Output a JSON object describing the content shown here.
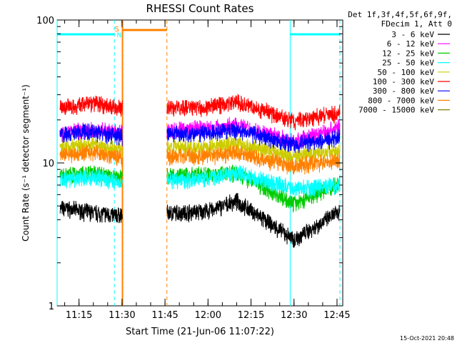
{
  "chart_data": {
    "type": "line",
    "title": "RHESSI Count Rates",
    "xlabel": "Start Time (21-Jun-06 11:07:22)",
    "ylabel": "Count Rate (s⁻¹ detector segment⁻¹)",
    "yscale": "log",
    "ylim": [
      1,
      100
    ],
    "xlim": [
      "11:07:22",
      "12:47:00"
    ],
    "x_tick_labels": [
      "11:15",
      "11:30",
      "11:45",
      "12:00",
      "12:15",
      "12:30",
      "12:45"
    ],
    "y_tick_labels": [
      "1",
      "10",
      "100"
    ],
    "legend_header": [
      "Det 1f,3f,4f,5f,6f,9f,",
      "FDecim 1, Att 0"
    ],
    "legend_position": "right",
    "footer_timestamp": "15-Oct-2021 20:48",
    "flag_labels": {
      "saa": "S",
      "night": "N"
    },
    "data_gaps": [
      {
        "start": "11:30:10",
        "end": "11:45:40"
      }
    ],
    "series": [
      {
        "name": "3 - 6 keV",
        "color": "#000000",
        "values_at": [
          "11:10",
          "11:20",
          "11:28",
          "12:00",
          "12:10",
          "12:30",
          "12:46"
        ],
        "values": [
          4.8,
          4.5,
          4.3,
          4.6,
          5.4,
          2.9,
          4.6
        ]
      },
      {
        "name": "6 - 12 keV",
        "color": "#ff00ff",
        "values_at": [
          "11:10",
          "11:20",
          "11:28",
          "12:00",
          "12:10",
          "12:30",
          "12:46"
        ],
        "values": [
          16.5,
          17.0,
          16.5,
          17.5,
          18.5,
          14.0,
          18.0
        ]
      },
      {
        "name": "12 - 25 keV",
        "color": "#00cc00",
        "values_at": [
          "11:10",
          "11:20",
          "11:28",
          "12:00",
          "12:10",
          "12:30",
          "12:46"
        ],
        "values": [
          8.2,
          8.5,
          8.0,
          8.3,
          8.6,
          5.2,
          7.2
        ]
      },
      {
        "name": "25 - 50 keV",
        "color": "#00ffff",
        "values_at": [
          "11:10",
          "11:20",
          "11:28",
          "12:00",
          "12:10",
          "12:30",
          "12:46"
        ],
        "values": [
          7.6,
          8.0,
          7.4,
          7.8,
          8.5,
          6.6,
          7.0
        ]
      },
      {
        "name": "50 - 100 keV",
        "color": "#cccc00",
        "values_at": [
          "11:10",
          "11:20",
          "11:28",
          "12:00",
          "12:10",
          "12:30",
          "12:46"
        ],
        "values": [
          13.0,
          13.5,
          12.5,
          13.0,
          13.8,
          11.0,
          12.5
        ]
      },
      {
        "name": "100 - 300 keV",
        "color": "#ff0000",
        "values_at": [
          "11:10",
          "11:20",
          "11:28",
          "12:00",
          "12:10",
          "12:30",
          "12:46"
        ],
        "values": [
          24.5,
          26.5,
          24.0,
          24.5,
          27.0,
          19.5,
          22.5
        ]
      },
      {
        "name": "300 - 800 keV",
        "color": "#0000ff",
        "values_at": [
          "11:10",
          "11:20",
          "11:28",
          "12:00",
          "12:10",
          "12:30",
          "12:46"
        ],
        "values": [
          16.0,
          16.5,
          15.5,
          16.2,
          17.0,
          13.5,
          15.0
        ]
      },
      {
        "name": "800 - 7000 keV",
        "color": "#ff8000",
        "values_at": [
          "11:10",
          "11:20",
          "11:28",
          "12:00",
          "12:10",
          "12:30",
          "12:46"
        ],
        "values": [
          11.5,
          12.0,
          11.0,
          11.2,
          11.8,
          9.5,
          10.5
        ]
      },
      {
        "name": "7000 - 15000 keV",
        "color": "#808000",
        "values_at": [],
        "values": []
      }
    ],
    "flags": [
      {
        "label": "S",
        "color": "#ff8000",
        "segments": [
          [
            "11:30:10",
            "11:45:40"
          ]
        ]
      },
      {
        "label": "N",
        "color": "#00ffff",
        "segments": [
          [
            "11:07:22",
            "11:27:20"
          ],
          [
            "12:28:40",
            "12:46:00"
          ]
        ]
      }
    ]
  }
}
